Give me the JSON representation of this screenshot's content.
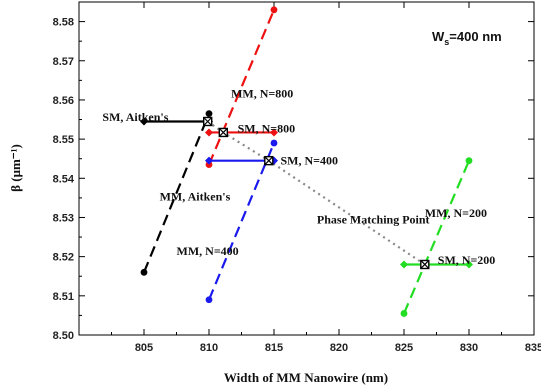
{
  "chart_data": {
    "type": "line",
    "xlabel": "Width of MM Nanowire (nm)",
    "ylabel": "β (μm⁻¹)",
    "xlim": [
      800,
      835
    ],
    "ylim": [
      8.5,
      8.585
    ],
    "xticks": [
      805,
      810,
      815,
      820,
      825,
      830,
      835
    ],
    "xtick_labels": [
      "805",
      "810",
      "815",
      "820",
      "825",
      "830",
      "835"
    ],
    "yticks": [
      8.5,
      8.51,
      8.52,
      8.53,
      8.54,
      8.55,
      8.56,
      8.57,
      8.58
    ],
    "ytick_labels": [
      "8.50",
      "8.51",
      "8.52",
      "8.53",
      "8.54",
      "8.55",
      "8.56",
      "8.57",
      "8.58"
    ],
    "grid": false,
    "series": [
      {
        "name": "MM, Aitken's",
        "style": "dashed",
        "color": "#000000",
        "x": [
          805,
          810
        ],
        "y": [
          8.516,
          8.5565
        ]
      },
      {
        "name": "SM, Aitken's",
        "style": "solid",
        "color": "#000000",
        "x": [
          805,
          810
        ],
        "y": [
          8.5545,
          8.5545
        ]
      },
      {
        "name": "MM, N=800",
        "style": "dashed",
        "color": "#ee1111",
        "x": [
          810,
          815
        ],
        "y": [
          8.5435,
          8.583
        ]
      },
      {
        "name": "SM, N=800",
        "style": "solid",
        "color": "#ee1111",
        "x": [
          810,
          815
        ],
        "y": [
          8.5517,
          8.5517
        ]
      },
      {
        "name": "MM, N=400",
        "style": "dashed",
        "color": "#1a1aee",
        "x": [
          810,
          815
        ],
        "y": [
          8.509,
          8.549
        ]
      },
      {
        "name": "SM, N=400",
        "style": "solid",
        "color": "#1a1aee",
        "x": [
          810,
          815
        ],
        "y": [
          8.5445,
          8.5445
        ]
      },
      {
        "name": "MM, N=200",
        "style": "dashed",
        "color": "#22dd22",
        "x": [
          825,
          830
        ],
        "y": [
          8.5055,
          8.5445
        ]
      },
      {
        "name": "SM, N=200",
        "style": "solid",
        "color": "#22dd22",
        "x": [
          825,
          830
        ],
        "y": [
          8.518,
          8.518
        ]
      }
    ],
    "phase_matching": {
      "label": "Phase Matching Point",
      "color": "#888888",
      "x": [
        809.9,
        811.1,
        814.6,
        826.6
      ],
      "y": [
        8.5545,
        8.5517,
        8.5445,
        8.518
      ]
    },
    "annotations": [
      {
        "text": "SM, Aitken's",
        "x": 801.8,
        "y": 8.5557
      },
      {
        "text": "MM, Aitken's",
        "x": 806.2,
        "y": 8.5354
      },
      {
        "text": "MM, N=800",
        "x": 811.7,
        "y": 8.5617
      },
      {
        "text": "SM, N=800",
        "x": 812.2,
        "y": 8.5527
      },
      {
        "text": "SM, N=400",
        "x": 815.5,
        "y": 8.5445
      },
      {
        "text": "MM, N=400",
        "x": 807.5,
        "y": 8.5215
      },
      {
        "text": "Phase Matching Point",
        "x": 818.3,
        "y": 8.5295
      },
      {
        "text": "MM, N=200",
        "x": 826.6,
        "y": 8.5312
      },
      {
        "text": "SM, N=200",
        "x": 827.6,
        "y": 8.5191
      }
    ],
    "panel_label": "W",
    "panel_label_sub": "s",
    "panel_label_rest": "=400 nm"
  }
}
